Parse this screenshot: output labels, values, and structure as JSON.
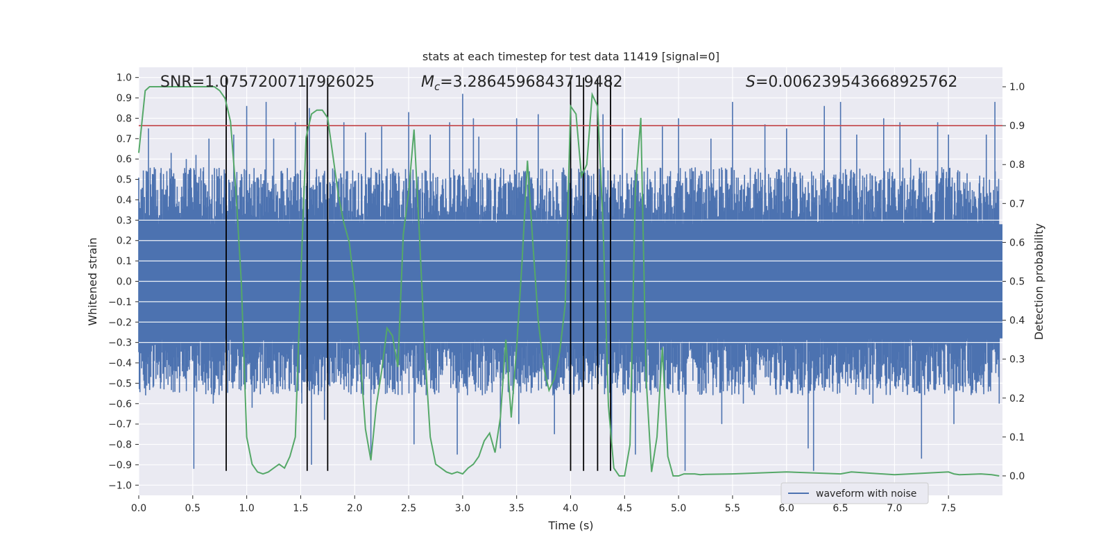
{
  "chart_data": {
    "type": "line",
    "title": "stats at each timestep for test data 11419 [signal=0]",
    "xlabel": "Time (s)",
    "ylabel": "Whitened strain",
    "y2label": "Detection probability",
    "xlim": [
      0.0,
      8.0
    ],
    "ylim": [
      -1.05,
      1.05
    ],
    "y2lim": [
      -0.05,
      1.05
    ],
    "xticks": [
      "0.0",
      "0.5",
      "1.0",
      "1.5",
      "2.0",
      "2.5",
      "3.0",
      "3.5",
      "4.0",
      "4.5",
      "5.0",
      "5.5",
      "6.0",
      "6.5",
      "7.0",
      "7.5"
    ],
    "yticks": [
      "1.0",
      "0.9",
      "0.8",
      "0.7",
      "0.6",
      "0.5",
      "0.4",
      "0.3",
      "0.2",
      "0.1",
      "0.0",
      "−0.1",
      "−0.2",
      "−0.3",
      "−0.4",
      "−0.5",
      "−0.6",
      "−0.7",
      "−0.8",
      "−0.9",
      "−1.0"
    ],
    "y2ticks": [
      "1.0",
      "0.9",
      "0.8",
      "0.7",
      "0.6",
      "0.5",
      "0.4",
      "0.3",
      "0.2",
      "0.1",
      "0.0"
    ],
    "annotations": {
      "snr": "SNR=1.0757200717926025",
      "mc_symbol": "M",
      "mc_sub": "c",
      "mc_value": "=3.2864596843719482",
      "s_symbol": "S",
      "s_value": "=0.006239543668925762"
    },
    "threshold": {
      "y2": 0.9,
      "color": "#c44e52"
    },
    "vertical_lines": [
      0.81,
      1.56,
      1.75,
      4.0,
      4.12,
      4.25,
      4.37
    ],
    "series": [
      {
        "name": "waveform with noise",
        "color": "#4c72b0",
        "axis": "left",
        "note": "dense noise waveform; envelope approximated",
        "spikes": [
          [
            0.09,
            0.75
          ],
          [
            0.3,
            0.63
          ],
          [
            0.44,
            0.6
          ],
          [
            0.51,
            -0.92
          ],
          [
            0.53,
            0.62
          ],
          [
            0.65,
            0.7
          ],
          [
            0.69,
            -0.6
          ],
          [
            0.88,
            0.72
          ],
          [
            0.93,
            -0.5
          ],
          [
            1.0,
            0.86
          ],
          [
            1.05,
            -0.62
          ],
          [
            1.18,
            0.88
          ],
          [
            1.25,
            0.7
          ],
          [
            1.45,
            0.78
          ],
          [
            1.51,
            -0.6
          ],
          [
            1.58,
            0.85
          ],
          [
            1.6,
            -0.9
          ],
          [
            1.72,
            -0.68
          ],
          [
            1.9,
            0.78
          ],
          [
            2.1,
            0.73
          ],
          [
            2.15,
            -0.85
          ],
          [
            2.25,
            0.76
          ],
          [
            2.5,
            0.83
          ],
          [
            2.55,
            -0.8
          ],
          [
            2.7,
            0.72
          ],
          [
            2.88,
            0.78
          ],
          [
            2.95,
            -0.85
          ],
          [
            3.0,
            0.92
          ],
          [
            3.1,
            0.8
          ],
          [
            3.15,
            0.71
          ],
          [
            3.35,
            -0.82
          ],
          [
            3.5,
            0.8
          ],
          [
            3.52,
            -0.7
          ],
          [
            3.7,
            0.82
          ],
          [
            3.85,
            -0.75
          ],
          [
            4.3,
            0.82
          ],
          [
            4.38,
            -0.8
          ],
          [
            4.48,
            0.75
          ],
          [
            4.6,
            -0.85
          ],
          [
            4.85,
            0.76
          ],
          [
            5.0,
            0.8
          ],
          [
            5.06,
            -0.93
          ],
          [
            5.3,
            0.7
          ],
          [
            5.4,
            -0.7
          ],
          [
            5.5,
            0.88
          ],
          [
            5.6,
            -0.6
          ],
          [
            5.8,
            0.77
          ],
          [
            6.0,
            0.75
          ],
          [
            6.2,
            -0.82
          ],
          [
            6.25,
            -0.93
          ],
          [
            6.35,
            0.86
          ],
          [
            6.5,
            0.88
          ],
          [
            6.65,
            0.72
          ],
          [
            6.8,
            -0.6
          ],
          [
            6.9,
            0.8
          ],
          [
            7.05,
            0.78
          ],
          [
            7.15,
            0.6
          ],
          [
            7.25,
            -0.87
          ],
          [
            7.4,
            0.78
          ],
          [
            7.5,
            0.72
          ],
          [
            7.55,
            -0.7
          ],
          [
            7.85,
            0.72
          ],
          [
            7.93,
            0.88
          ],
          [
            7.97,
            -0.6
          ]
        ]
      },
      {
        "name": "detection probability",
        "color": "#55a868",
        "axis": "right",
        "x": [
          0.0,
          0.06,
          0.1,
          0.2,
          0.3,
          0.4,
          0.5,
          0.6,
          0.65,
          0.7,
          0.75,
          0.8,
          0.85,
          0.9,
          0.95,
          1.0,
          1.05,
          1.1,
          1.15,
          1.2,
          1.25,
          1.3,
          1.35,
          1.4,
          1.45,
          1.5,
          1.55,
          1.6,
          1.65,
          1.7,
          1.75,
          1.8,
          1.85,
          1.9,
          1.95,
          2.0,
          2.05,
          2.1,
          2.15,
          2.2,
          2.25,
          2.3,
          2.35,
          2.4,
          2.45,
          2.5,
          2.55,
          2.6,
          2.65,
          2.7,
          2.75,
          2.8,
          2.85,
          2.9,
          2.95,
          3.0,
          3.05,
          3.1,
          3.15,
          3.2,
          3.25,
          3.3,
          3.35,
          3.4,
          3.45,
          3.5,
          3.55,
          3.6,
          3.65,
          3.7,
          3.75,
          3.8,
          3.85,
          3.9,
          3.95,
          4.0,
          4.05,
          4.1,
          4.15,
          4.2,
          4.25,
          4.3,
          4.35,
          4.4,
          4.45,
          4.5,
          4.55,
          4.6,
          4.65,
          4.7,
          4.75,
          4.8,
          4.85,
          4.9,
          4.95,
          5.0,
          5.05,
          5.1,
          5.15,
          5.2,
          5.25,
          5.5,
          6.0,
          6.5,
          6.6,
          7.0,
          7.5,
          7.55,
          7.6,
          7.8,
          7.9,
          7.97
        ],
        "values": [
          0.83,
          0.99,
          1.0,
          1.0,
          1.0,
          1.0,
          1.0,
          1.0,
          1.0,
          1.0,
          0.99,
          0.97,
          0.91,
          0.73,
          0.5,
          0.1,
          0.03,
          0.01,
          0.005,
          0.01,
          0.02,
          0.03,
          0.02,
          0.05,
          0.1,
          0.5,
          0.87,
          0.93,
          0.94,
          0.94,
          0.92,
          0.82,
          0.72,
          0.65,
          0.6,
          0.48,
          0.31,
          0.12,
          0.04,
          0.18,
          0.27,
          0.38,
          0.36,
          0.28,
          0.62,
          0.73,
          0.89,
          0.62,
          0.32,
          0.1,
          0.03,
          0.02,
          0.01,
          0.005,
          0.01,
          0.005,
          0.02,
          0.03,
          0.05,
          0.09,
          0.11,
          0.06,
          0.15,
          0.35,
          0.15,
          0.33,
          0.55,
          0.81,
          0.6,
          0.4,
          0.28,
          0.22,
          0.25,
          0.32,
          0.44,
          0.95,
          0.93,
          0.77,
          0.8,
          0.98,
          0.95,
          0.65,
          0.18,
          0.02,
          0.0,
          0.0,
          0.08,
          0.74,
          0.92,
          0.25,
          0.01,
          0.1,
          0.33,
          0.05,
          0.0,
          0.0,
          0.005,
          0.005,
          0.005,
          0.003,
          0.004,
          0.005,
          0.01,
          0.005,
          0.01,
          0.003,
          0.01,
          0.005,
          0.003,
          0.005,
          0.003,
          0.0
        ],
        "note": "values shown by the green curve on the right axis"
      }
    ],
    "legend": {
      "label": "waveform with noise",
      "location": "bottom-center-right"
    }
  }
}
